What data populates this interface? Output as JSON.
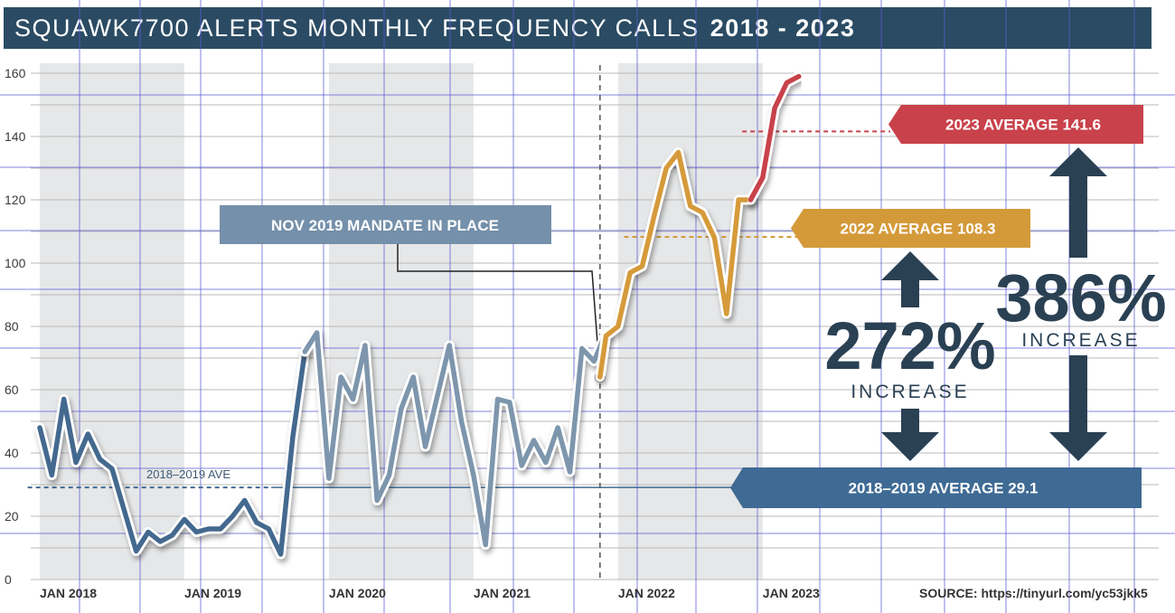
{
  "title": "SQUAWK7700 ALERTS MONTHLY FREQUENCY CALLS",
  "title_years": "2018 - 2023",
  "mandate_label": "NOV 2019 MANDATE IN PLACE",
  "baseline_small_label": "2018–2019 AVE",
  "source": "SOURCE: https://tinyurl.com/yc53jkk5",
  "banners": {
    "avg_2023": "2023 AVERAGE 141.6",
    "avg_2022": "2022 AVERAGE 108.3",
    "avg_2018_2019": "2018–2019 AVERAGE 29.1"
  },
  "increase_272": {
    "pct": "272%",
    "word": "INCREASE"
  },
  "increase_386": {
    "pct": "386%",
    "word": "INCREASE"
  },
  "colors": {
    "title_bg": "#2a4b63",
    "line_early": "#44698f",
    "line_mid": "#7d96ad",
    "line_2022": "#d69a3a",
    "line_2023": "#c8424a",
    "banner_red": "#c9414a",
    "banner_gold": "#d49a3a",
    "banner_blue": "#3e6a94",
    "arrow_dark": "#2a4053"
  },
  "chart_data": {
    "type": "line",
    "title": "SQUAWK7700 ALERTS MONTHLY FREQUENCY CALLS 2018 - 2023",
    "xlabel": "",
    "ylabel": "",
    "ylim": [
      0,
      160
    ],
    "yticks": [
      0,
      20,
      40,
      60,
      80,
      100,
      120,
      140,
      160
    ],
    "xticks": [
      {
        "label": "JAN 2018",
        "x": 0
      },
      {
        "label": "JAN 2019",
        "x": 12
      },
      {
        "label": "JAN 2020",
        "x": 24
      },
      {
        "label": "JAN 2021",
        "x": 36
      },
      {
        "label": "JAN 2022",
        "x": 48
      },
      {
        "label": "JAN 2023",
        "x": 60
      }
    ],
    "shaded_periods": [
      [
        0,
        12
      ],
      [
        24,
        36
      ],
      [
        48,
        60
      ]
    ],
    "mandate_x": 46.5,
    "series": [
      {
        "name": "2018-2019",
        "segment": "early",
        "x": [
          0,
          1,
          2,
          3,
          4,
          5,
          6,
          7,
          8,
          9,
          10,
          11,
          12,
          13,
          14,
          15,
          16,
          17,
          18,
          19,
          20,
          21,
          22
        ],
        "values": [
          48,
          33,
          57,
          37,
          46,
          38,
          35,
          22,
          9,
          15,
          12,
          14,
          19,
          15,
          16,
          16,
          20,
          25,
          18,
          16,
          8,
          45,
          72
        ]
      },
      {
        "name": "2020",
        "segment": "mid",
        "x": [
          22,
          23,
          24,
          25,
          26,
          27,
          28,
          29,
          30,
          31,
          32,
          33,
          34,
          35,
          36,
          37,
          38,
          39,
          40,
          41,
          42,
          43,
          44,
          45,
          46,
          47
        ],
        "values": [
          72,
          78,
          32,
          64,
          57,
          74,
          25,
          33,
          54,
          64,
          42,
          58,
          74,
          50,
          33,
          11,
          57,
          56,
          36,
          44,
          37,
          48,
          34,
          73,
          69,
          78
        ]
      },
      {
        "name": "2022",
        "segment": "2022",
        "x": [
          46.5,
          47,
          48,
          49,
          50,
          51,
          52,
          53,
          54,
          55,
          56,
          57,
          58,
          59
        ],
        "values": [
          64,
          77,
          80,
          97,
          99,
          115,
          130,
          135,
          118,
          116,
          108,
          84,
          120,
          120
        ]
      },
      {
        "name": "2023",
        "segment": "2023",
        "x": [
          59,
          60,
          61,
          62,
          63
        ],
        "values": [
          120,
          127,
          149,
          157,
          159
        ]
      }
    ],
    "reference_lines": [
      {
        "name": "2018-2019 AVERAGE",
        "value": 29.1
      },
      {
        "name": "2022 AVERAGE",
        "value": 108.3
      },
      {
        "name": "2023 AVERAGE",
        "value": 141.6
      }
    ],
    "annotations": [
      "NOV 2019 MANDATE IN PLACE",
      "272% INCREASE",
      "386% INCREASE"
    ]
  }
}
